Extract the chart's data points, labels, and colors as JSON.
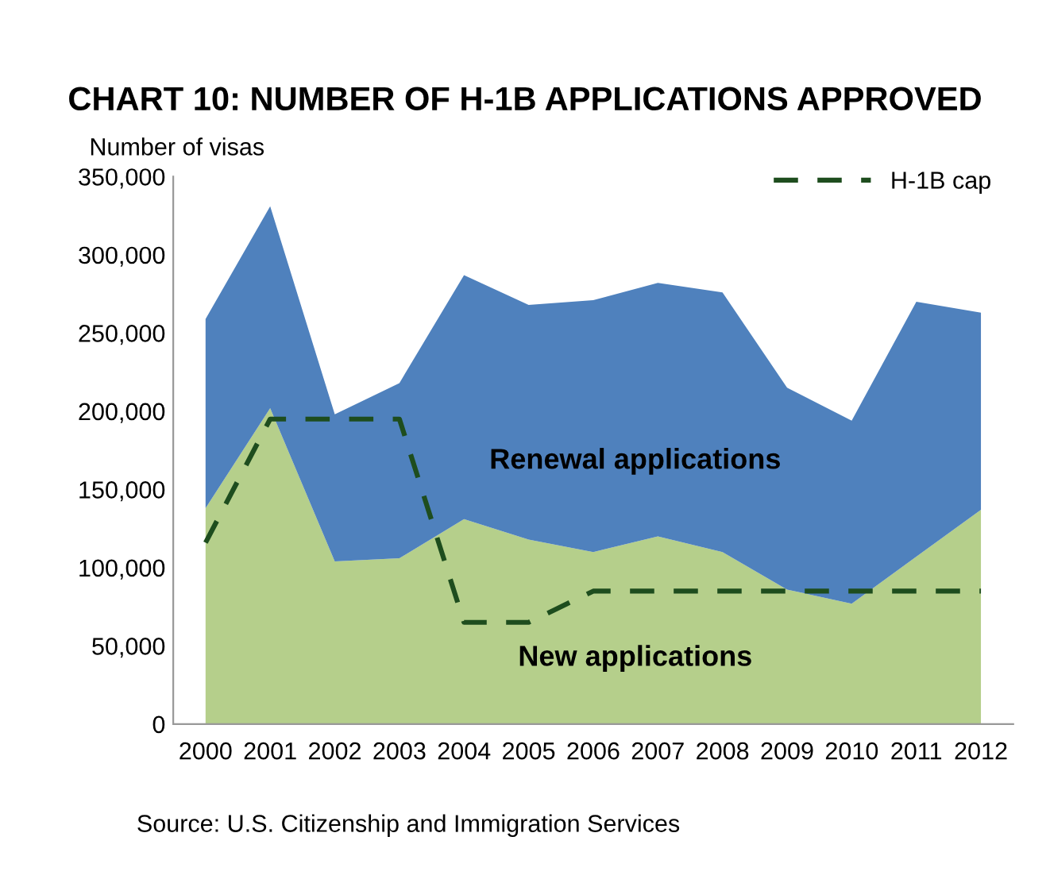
{
  "chart_data": {
    "type": "area",
    "title": "CHART 10: NUMBER OF H-1B APPLICATIONS APPROVED",
    "ylabel": "Number of visas",
    "categories": [
      "2000",
      "2001",
      "2002",
      "2003",
      "2004",
      "2005",
      "2006",
      "2007",
      "2008",
      "2009",
      "2010",
      "2011",
      "2012"
    ],
    "stacked": true,
    "series": [
      {
        "name": "New applications",
        "color": "#b5cf8b",
        "values": [
          138000,
          202000,
          104000,
          106000,
          131000,
          118000,
          110000,
          120000,
          110000,
          86000,
          77000,
          107000,
          137000
        ]
      },
      {
        "name": "Renewal applications",
        "color": "#4f81bd",
        "values": [
          121000,
          129000,
          94000,
          112000,
          156000,
          150000,
          161000,
          162000,
          166000,
          129000,
          117000,
          163000,
          126000
        ]
      },
      {
        "name": "H-1B cap",
        "type": "line",
        "color": "#1e4d1e",
        "line_style": "dashed",
        "values": [
          116000,
          195000,
          195000,
          195000,
          65000,
          65000,
          85000,
          85000,
          85000,
          85000,
          85000,
          85000,
          85000
        ]
      }
    ],
    "ylim": [
      0,
      350000
    ],
    "yticks": [
      {
        "value": 0,
        "label": "0"
      },
      {
        "value": 50000,
        "label": "50,000"
      },
      {
        "value": 100000,
        "label": "100,000"
      },
      {
        "value": 150000,
        "label": "150,000"
      },
      {
        "value": 200000,
        "label": "200,000"
      },
      {
        "value": 250000,
        "label": "250,000"
      },
      {
        "value": 300000,
        "label": "300,000"
      },
      {
        "value": 350000,
        "label": "350,000"
      }
    ],
    "grid": false,
    "legend": "top right",
    "annotations": [
      "Source: U.S. Citizenship and Immigration Services"
    ]
  }
}
